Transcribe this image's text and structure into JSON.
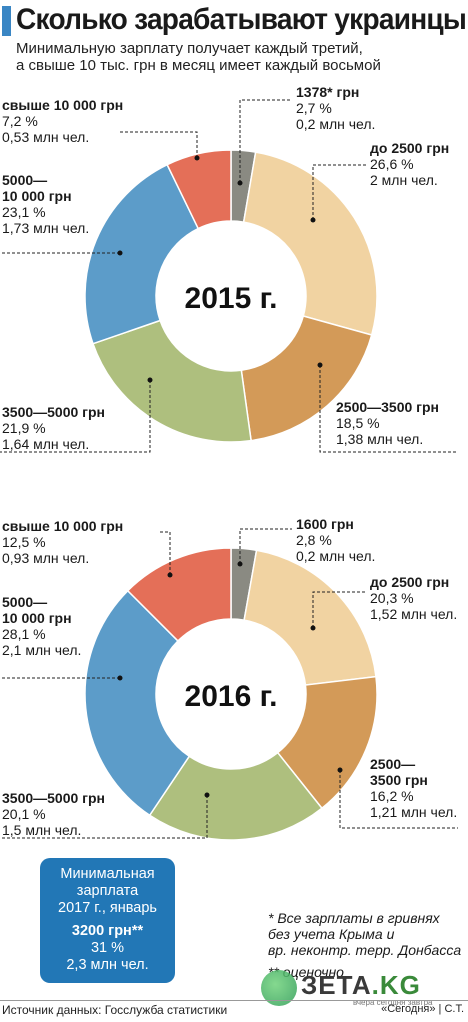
{
  "header": {
    "title": "Сколько зарабатывают украинцы",
    "subtitle_line1": "Минимальную зарплату получает каждый третий,",
    "subtitle_line2": "а свыше 10 тыс. грн в месяц имеет каждый восьмой"
  },
  "chart_data": [
    {
      "type": "pie",
      "title": "2015 г.",
      "donut": true,
      "categories": [
        "1378* грн",
        "до 2500 грн",
        "2500—3500 грн",
        "3500—5000 грн",
        "5000—10 000 грн",
        "свыше 10 000 грн"
      ],
      "values": [
        2.7,
        26.6,
        18.5,
        21.9,
        23.1,
        7.2
      ],
      "percent_labels": [
        "2,7 %",
        "26,6 %",
        "18,5 %",
        "21,9 %",
        "23,1 %",
        "7,2 %"
      ],
      "people_labels": [
        "0,2 млн чел.",
        "2 млн чел.",
        "1,38 млн чел.",
        "1,64 млн чел.",
        "1,73 млн чел.",
        "0,53 млн чел."
      ],
      "colors": [
        "#8a8a82",
        "#f1d3a2",
        "#d39a58",
        "#aebf7e",
        "#5c9cc9",
        "#e46f58"
      ]
    },
    {
      "type": "pie",
      "title": "2016 г.",
      "donut": true,
      "categories": [
        "1600 грн",
        "до 2500 грн",
        "2500—3500 грн",
        "3500—5000 грн",
        "5000—10 000 грн",
        "свыше 10 000 грн"
      ],
      "values": [
        2.8,
        20.3,
        16.2,
        20.1,
        28.1,
        12.5
      ],
      "percent_labels": [
        "2,8 %",
        "20,3 %",
        "16,2 %",
        "20,1 %",
        "28,1 %",
        "12,5 %"
      ],
      "people_labels": [
        "0,2 млн чел.",
        "1,52 млн чел.",
        "1,21 млн чел.",
        "1,5 млн чел.",
        "2,1 млн чел.",
        "0,93 млн чел."
      ],
      "colors": [
        "#8a8a82",
        "#f1d3a2",
        "#d39a58",
        "#aebf7e",
        "#5c9cc9",
        "#e46f58"
      ]
    }
  ],
  "labels2015": {
    "s0_h": "1378* грн",
    "s0_p": "2,7 %",
    "s0_n": "0,2 млн чел.",
    "s1_h": "до 2500 грн",
    "s1_p": "26,6 %",
    "s1_n": "2 млн чел.",
    "s2_h": "2500—3500 грн",
    "s2_p": "18,5 %",
    "s2_n": "1,38 млн чел.",
    "s3_h": "3500—5000 грн",
    "s3_p": "21,9 %",
    "s3_n": "1,64 млн чел.",
    "s4_h1": "5000—",
    "s4_h2": "10 000 грн",
    "s4_p": "23,1 %",
    "s4_n": "1,73 млн чел.",
    "s5_h": "свыше 10 000 грн",
    "s5_p": "7,2 %",
    "s5_n": "0,53 млн чел."
  },
  "labels2016": {
    "s0_h": "1600 грн",
    "s0_p": "2,8 %",
    "s0_n": "0,2 млн чел.",
    "s1_h": "до 2500 грн",
    "s1_p": "20,3 %",
    "s1_n": "1,52 млн чел.",
    "s2_h1": "2500—",
    "s2_h2": "3500 грн",
    "s2_p": "16,2 %",
    "s2_n": "1,21 млн чел.",
    "s3_h": "3500—5000 грн",
    "s3_p": "20,1 %",
    "s3_n": "1,5 млн чел.",
    "s4_h1": "5000—",
    "s4_h2": "10 000 грн",
    "s4_p": "28,1 %",
    "s4_n": "2,1 млн чел.",
    "s5_h": "свыше 10 000 грн",
    "s5_p": "12,5 %",
    "s5_n": "0,93 млн чел."
  },
  "min_wage_box": {
    "line1": "Минимальная",
    "line2": "зарплата",
    "line3": "2017 г., январь",
    "amount": "3200 грн**",
    "percent": "31 %",
    "people": "2,3 млн чел."
  },
  "notes": {
    "line1": "* Все зарплаты в гривнях",
    "line2": "без учета Крыма и",
    "line3": "вр. неконтр. терр. Донбасса",
    "line4": "** оценочно"
  },
  "footer": {
    "source": "Источник данных: Госслужба статистики",
    "credit": "«Сегодня» | С.Т."
  },
  "watermark": {
    "brand": "ЗЕТА",
    "brand_suffix": ".KG",
    "tagline": "вчера сегодня завтра"
  }
}
